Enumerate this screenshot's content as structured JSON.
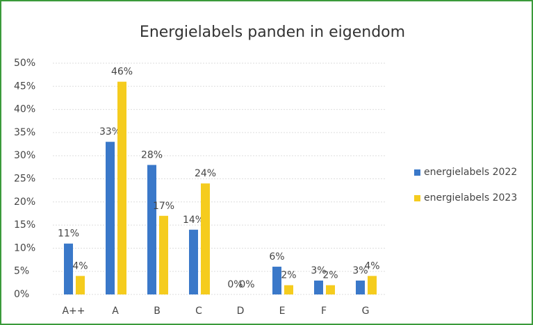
{
  "chart_data": {
    "type": "bar",
    "title": "Energielabels panden in eigendom",
    "categories": [
      "A++",
      "A",
      "B",
      "C",
      "D",
      "E",
      "F",
      "G"
    ],
    "series": [
      {
        "name": "energielabels 2022",
        "color": "#3a78c9",
        "values": [
          11,
          33,
          28,
          14,
          0,
          6,
          3,
          3
        ],
        "value_labels": [
          "11%",
          "33%",
          "28%",
          "14%",
          "0%",
          "6%",
          "3%",
          "3%"
        ]
      },
      {
        "name": "energielabels 2023",
        "color": "#f5cc1e",
        "values": [
          4,
          46,
          17,
          24,
          0,
          2,
          2,
          4
        ],
        "value_labels": [
          "4%",
          "46%",
          "17%",
          "24%",
          "0%",
          "2%",
          "2%",
          "4%"
        ]
      }
    ],
    "ylim": [
      0,
      50
    ],
    "yticks": [
      {
        "value": 0,
        "label": "0%"
      },
      {
        "value": 5,
        "label": "5%"
      },
      {
        "value": 10,
        "label": "10%"
      },
      {
        "value": 15,
        "label": "15%"
      },
      {
        "value": 20,
        "label": "20%"
      },
      {
        "value": 25,
        "label": "25%"
      },
      {
        "value": 30,
        "label": "30%"
      },
      {
        "value": 35,
        "label": "35%"
      },
      {
        "value": 40,
        "label": "40%"
      },
      {
        "value": 45,
        "label": "45%"
      },
      {
        "value": 50,
        "label": "50%"
      }
    ],
    "grid": true,
    "legend": "right"
  }
}
